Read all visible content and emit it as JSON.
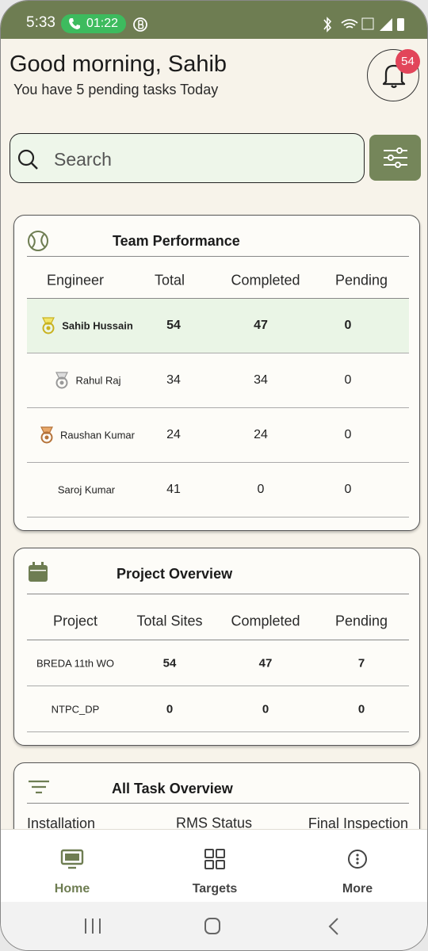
{
  "status_bar": {
    "time": "5:33",
    "call_timer": "01:22"
  },
  "header": {
    "greeting": "Good morning, Sahib",
    "subtitle": "You have 5 pending tasks Today",
    "notification_count": 54
  },
  "search": {
    "placeholder": "Search"
  },
  "team_performance": {
    "title": "Team Performance",
    "columns": [
      "Engineer",
      "Total",
      "Completed",
      "Pending"
    ],
    "rows": [
      [
        "Sahib Hussain",
        54,
        47,
        0
      ],
      [
        "Rahul Raj",
        34,
        34,
        0
      ],
      [
        "Raushan Kumar",
        24,
        24,
        0
      ],
      [
        "Saroj Kumar",
        41,
        0,
        0
      ]
    ]
  },
  "project_overview": {
    "title": "Project Overview",
    "columns": [
      "Project",
      "Total Sites",
      "Completed",
      "Pending"
    ],
    "rows": [
      [
        "BREDA 11th WO",
        54,
        47,
        7
      ],
      [
        "NTPC_DP",
        0,
        0,
        0
      ]
    ]
  },
  "all_task_overview": {
    "title": "All Task Overview",
    "columns": [
      "Installation",
      "RMS Status",
      "Final Inspection"
    ]
  },
  "nav": {
    "items": [
      "Home",
      "Targets",
      "More"
    ]
  }
}
